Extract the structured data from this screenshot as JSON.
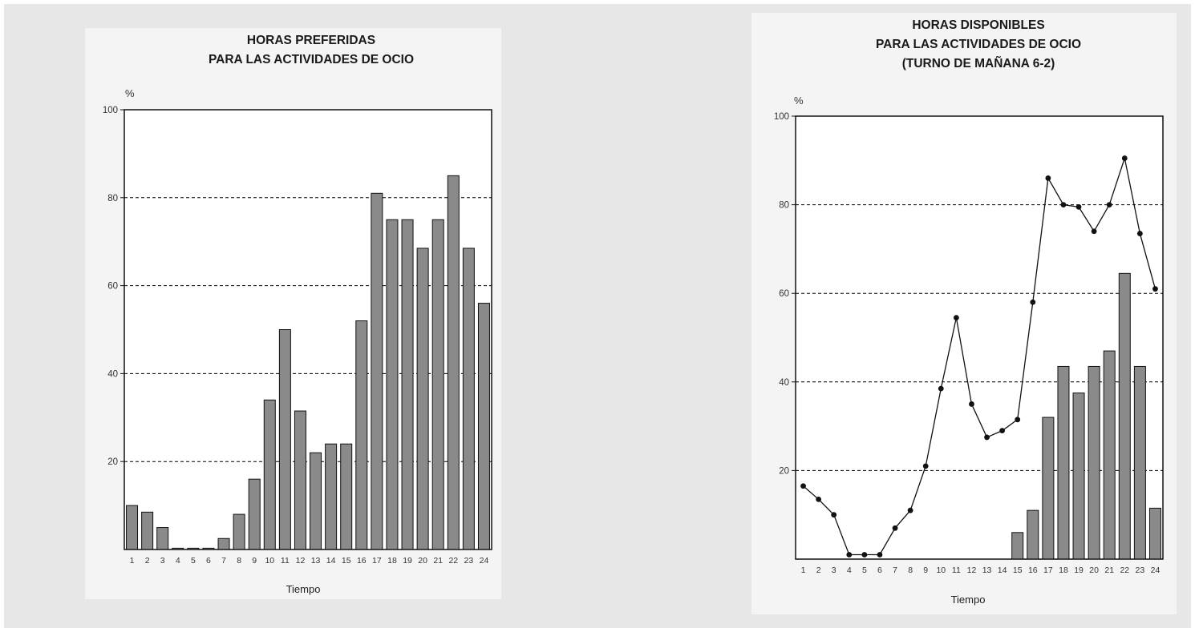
{
  "chart_data": [
    {
      "type": "bar",
      "title_lines": [
        "HORAS PREFERIDAS",
        "PARA LAS ACTIVIDADES DE OCIO"
      ],
      "unit_label": "%",
      "xlabel": "Tiempo",
      "ylim": [
        0,
        100
      ],
      "yticks": [
        20,
        40,
        60,
        80,
        100
      ],
      "grid": "dashed horizontal at 20, 40, 60, 80",
      "categories": [
        "1",
        "2",
        "3",
        "4",
        "5",
        "6",
        "7",
        "8",
        "9",
        "10",
        "11",
        "12",
        "13",
        "14",
        "15",
        "16",
        "17",
        "18",
        "19",
        "20",
        "21",
        "22",
        "23",
        "24"
      ],
      "values": [
        10,
        8.5,
        5,
        0.3,
        0.3,
        0.3,
        2.5,
        8,
        16,
        34,
        50,
        31.5,
        22,
        24,
        24,
        52,
        81,
        75,
        75,
        68.5,
        75,
        85,
        68.5,
        56
      ],
      "colors": {
        "bar": "#8a8a8a",
        "frame": "#111111"
      }
    },
    {
      "type": "bar+line",
      "title_lines": [
        "HORAS DISPONIBLES",
        "PARA LAS ACTIVIDADES DE OCIO",
        "(TURNO DE MAÑANA 6-2)"
      ],
      "unit_label": "%",
      "xlabel": "Tiempo",
      "ylim": [
        0,
        100
      ],
      "yticks": [
        20,
        40,
        60,
        80,
        100
      ],
      "grid": "dashed horizontal at 20, 40, 60, 80",
      "categories": [
        "1",
        "2",
        "3",
        "4",
        "5",
        "6",
        "7",
        "8",
        "9",
        "10",
        "11",
        "12",
        "13",
        "14",
        "15",
        "16",
        "17",
        "18",
        "19",
        "20",
        "21",
        "22",
        "23",
        "24"
      ],
      "bar_values": [
        0,
        0,
        0,
        0,
        0,
        0,
        0,
        0,
        0,
        0,
        0,
        0,
        0,
        0,
        6,
        11,
        32,
        43.5,
        37.5,
        43.5,
        47,
        64.5,
        43.5,
        11.5
      ],
      "line_values": [
        16.5,
        13.5,
        10,
        1,
        1,
        1,
        7,
        11,
        21,
        38.5,
        54.5,
        35,
        27.5,
        29,
        31.5,
        58,
        86,
        80,
        79.5,
        74,
        80,
        90.5,
        73.5,
        61
      ],
      "colors": {
        "bar": "#8a8a8a",
        "line": "#111111",
        "frame": "#111111"
      }
    }
  ]
}
